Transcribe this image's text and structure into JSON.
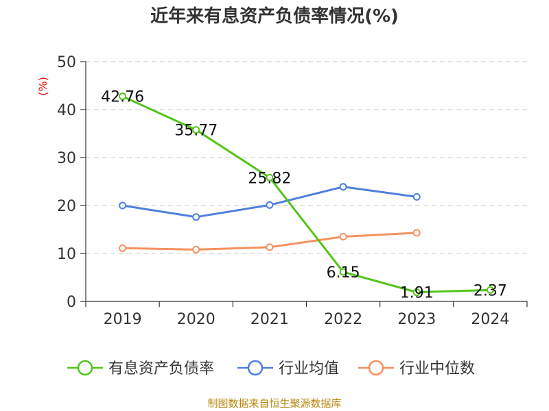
{
  "chart_data": {
    "type": "line",
    "title": "近年来有息资产负债率情况(%)",
    "ylabel": "(%)",
    "xlabel": "",
    "categories": [
      "2019",
      "2020",
      "2021",
      "2022",
      "2023",
      "2024"
    ],
    "ylim": [
      0,
      50
    ],
    "yticks": [
      "0",
      "10",
      "20",
      "30",
      "40",
      "50"
    ],
    "grid": true,
    "legend_position": "bottom",
    "series": [
      {
        "name": "有息资产负债率",
        "color": "#52c41a",
        "values": [
          42.76,
          35.77,
          25.82,
          6.15,
          1.91,
          2.37
        ],
        "labels": [
          "42.76",
          "35.77",
          "25.82",
          "6.15",
          "1.91",
          "2.37"
        ]
      },
      {
        "name": "行业均值",
        "color": "#4e7fdc",
        "values": [
          20.0,
          17.6,
          20.1,
          23.9,
          21.8,
          null
        ],
        "labels": []
      },
      {
        "name": "行业中位数",
        "color": "#f4915e",
        "values": [
          11.1,
          10.8,
          11.3,
          13.5,
          14.3,
          null
        ],
        "labels": []
      }
    ]
  },
  "source_text": "制图数据来自恒生聚源数据库"
}
